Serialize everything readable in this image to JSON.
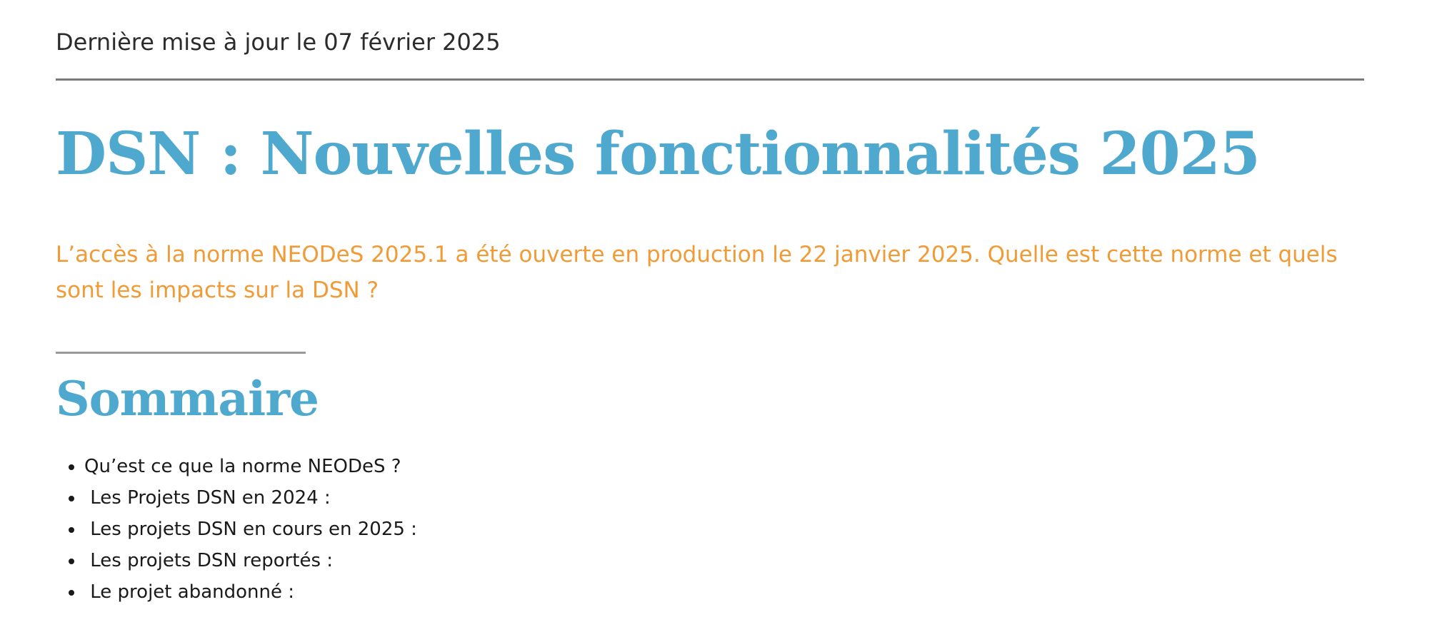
{
  "meta": {
    "last_updated": "Dernière mise à jour le 07 février 2025"
  },
  "article": {
    "title": "DSN : Nouvelles fonctionnalités 2025",
    "lead": "L’accès à la norme NEODeS 2025.1 a été ouverte en production le 22 janvier 2025. Quelle est cette norme et quels sont les impacts sur la DSN ?"
  },
  "summary": {
    "heading": "Sommaire",
    "items": [
      {
        "label": "Qu’est ce que la norme NEODeS ?"
      },
      {
        "label": " Les Projets DSN en 2024 :"
      },
      {
        "label": " Les projets DSN en cours en 2025 :"
      },
      {
        "label": " Les projets DSN reportés :"
      },
      {
        "label": " Le projet abandonné :"
      }
    ]
  },
  "colors": {
    "title": "#4fa9cf",
    "lead": "#f19b37",
    "rule": "#7a7a7a"
  }
}
